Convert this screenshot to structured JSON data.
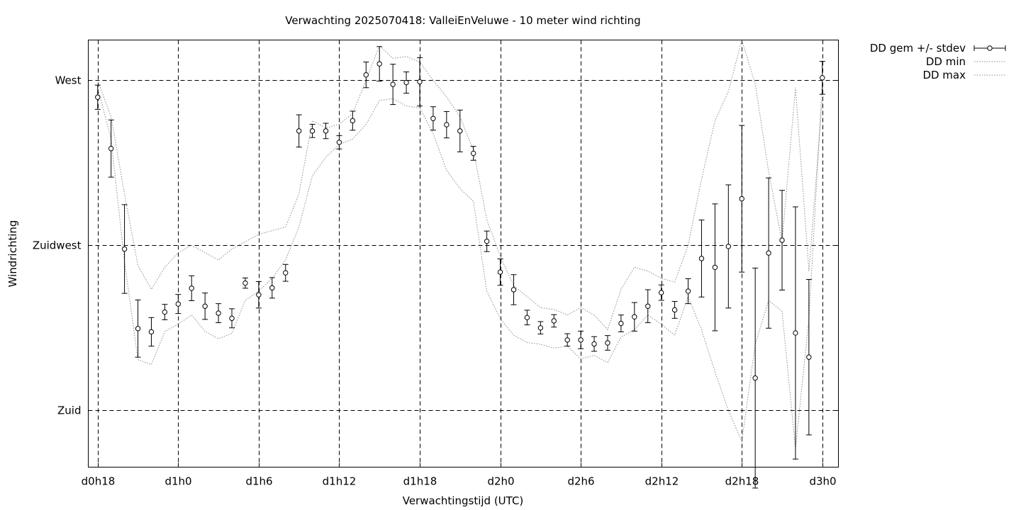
{
  "chart_data": {
    "type": "line",
    "title": "Verwachting 2025070418: ValleiEnVeluwe - 10 meter wind richting",
    "xlabel": "Verwachtingstijd (UTC)",
    "ylabel": "Windrichting",
    "x_ticks": [
      "d0h18",
      "d1h0",
      "d1h6",
      "d1h12",
      "d1h18",
      "d2h0",
      "d2h6",
      "d2h12",
      "d2h18",
      "d3h0"
    ],
    "x_tick_hours": [
      18,
      24,
      30,
      36,
      42,
      48,
      54,
      60,
      66,
      72
    ],
    "xlim": [
      17.3,
      73.2
    ],
    "y_ticks": [
      {
        "label": "Zuid",
        "value": 180
      },
      {
        "label": "Zuidwest",
        "value": 225
      },
      {
        "label": "West",
        "value": 270
      }
    ],
    "ylim": [
      164.5,
      281
    ],
    "grid": true,
    "legend_position": "top-right, outside plot",
    "x": [
      18,
      19,
      20,
      21,
      22,
      23,
      24,
      25,
      26,
      27,
      28,
      29,
      30,
      31,
      32,
      33,
      34,
      35,
      36,
      37,
      38,
      39,
      40,
      41,
      42,
      43,
      44,
      45,
      46,
      47,
      48,
      49,
      50,
      51,
      52,
      53,
      54,
      55,
      56,
      57,
      58,
      59,
      60,
      61,
      62,
      63,
      64,
      65,
      66,
      67,
      68,
      69,
      70,
      71,
      72
    ],
    "series": [
      {
        "name": "DD gem +/- stdev",
        "style": "points-with-errorbars",
        "values": [
          265.4,
          251.4,
          224.0,
          202.3,
          201.4,
          206.8,
          209.0,
          213.3,
          208.4,
          206.5,
          205.1,
          214.7,
          211.5,
          213.4,
          217.5,
          256.2,
          256.2,
          256.2,
          253.1,
          259.0,
          271.5,
          274.5,
          268.9,
          269.4,
          269.6,
          259.6,
          257.9,
          256.2,
          250.1,
          226.1,
          217.7,
          212.9,
          205.3,
          202.5,
          204.4,
          199.2,
          199.2,
          198.1,
          198.4,
          203.7,
          205.5,
          208.4,
          212.1,
          207.4,
          212.5,
          221.4,
          219.0,
          224.7,
          237.7,
          188.8,
          222.9,
          226.4,
          201.1,
          194.5,
          270.7
        ],
        "stdev": [
          3.3,
          7.8,
          12.1,
          7.8,
          3.9,
          2.1,
          2.6,
          3.4,
          3.6,
          2.6,
          2.6,
          1.4,
          3.6,
          2.8,
          2.3,
          4.4,
          1.8,
          2.1,
          1.8,
          2.6,
          3.5,
          4.7,
          5.5,
          2.9,
          6.6,
          3.2,
          3.6,
          5.7,
          1.9,
          2.8,
          3.6,
          4.1,
          2.0,
          1.7,
          1.7,
          1.7,
          2.4,
          2.0,
          2.0,
          2.3,
          3.9,
          4.5,
          2.1,
          2.3,
          3.4,
          10.5,
          17.3,
          16.8,
          20.0,
          30.0,
          20.5,
          13.6,
          34.4,
          21.2,
          4.5
        ]
      },
      {
        "name": "DD min",
        "style": "dotted",
        "values": [
          270.0,
          260.0,
          239.0,
          219.5,
          213.0,
          219.0,
          223.0,
          225.0,
          223.0,
          221.0,
          224.0,
          226.0,
          228.0,
          229.0,
          230.0,
          239.0,
          259.0,
          257.0,
          258.0,
          261.0,
          270.0,
          279.5,
          276.0,
          276.5,
          275.0,
          270.0,
          265.5,
          260.0,
          251.0,
          232.0,
          222.0,
          214.0,
          211.0,
          208.0,
          207.5,
          206.0,
          208.0,
          206.0,
          202.0,
          213.0,
          219.0,
          218.0,
          216.0,
          215.0,
          225.0,
          243.0,
          259.0,
          267.0,
          281.0,
          269.0,
          245.0,
          226.0,
          268.0,
          218.0,
          265.0
        ]
      },
      {
        "name": "DD max",
        "style": "dotted",
        "values": [
          268.0,
          254.0,
          220.5,
          193.8,
          192.5,
          201.5,
          203.5,
          206.0,
          201.5,
          199.5,
          201.0,
          210.0,
          212.5,
          216.0,
          221.0,
          230.0,
          244.0,
          249.0,
          252.5,
          254.0,
          258.0,
          264.5,
          265.0,
          263.0,
          262.5,
          255.5,
          245.5,
          240.5,
          237.0,
          212.5,
          205.0,
          200.5,
          198.5,
          198.0,
          197.0,
          197.5,
          194.0,
          195.0,
          193.0,
          200.0,
          202.0,
          206.0,
          203.5,
          200.5,
          211.0,
          202.0,
          190.5,
          180.0,
          171.5,
          198.0,
          210.0,
          207.0,
          169.5,
          205.0,
          269.5
        ]
      }
    ]
  }
}
